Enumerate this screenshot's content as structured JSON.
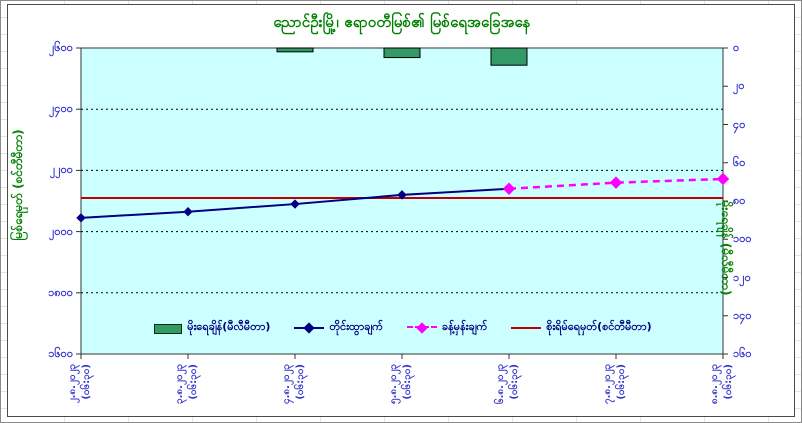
{
  "title": "ညောင်ဦးမြို့၊ ဧရာဝတီမြစ်၏ မြစ်ရေအခြေအနေ",
  "title_color": "#008000",
  "chart_data": {
    "type": "combo (bar + line + dashed forecast line + constant danger line)",
    "categories": [
      "၂.၈.၂၀၂၃",
      "၃.၈.၂၀၂၃",
      "၄.၈.၂၀၂၃",
      "၅.၈.၂၀၂၃",
      "၆.၈.၂၀၂၃",
      "၇.၈.၂၀၂၃",
      "၈.၈.၂၀၂၃"
    ],
    "category_time_suffix": "(၀၆:၃၀)",
    "plot_background": "#ccffff",
    "grid": "horizontal dashed black lines at each 200 cm step",
    "left_axis": {
      "title": "မြစ်ရေမှတ် (စင်တီမီတာ)",
      "title_color": "#008000",
      "min": 1600,
      "max": 2600,
      "step": 200,
      "tick_labels": [
        "၂၆၀၀",
        "၂၄၀၀",
        "၂၂၀၀",
        "၂၀၀၀",
        "၁၈၀၀",
        "၁၆၀၀"
      ],
      "tick_values": [
        2600,
        2400,
        2200,
        2000,
        1800,
        1600
      ],
      "label_color": "#3333cc"
    },
    "right_axis": {
      "title": "မိုးရေချိန် (မီလီမီတာ)",
      "title_color": "#008000",
      "min": 0,
      "max": 160,
      "step": 20,
      "direction": "inverted (0 at top, 160 at bottom)",
      "tick_labels": [
        "၀",
        "၂၀",
        "၄၀",
        "၆၀",
        "၈၀",
        "၁၀၀",
        "၁၂၀",
        "၁၄၀",
        "၁၆၀"
      ],
      "tick_values": [
        0,
        20,
        40,
        60,
        80,
        100,
        120,
        140,
        160
      ],
      "label_color": "#3333cc"
    },
    "series": [
      {
        "name": "မိုးရေချိန်(မီလီမီတာ)",
        "type": "bar",
        "axis": "right",
        "color": "#339966",
        "border_color": "#000000",
        "values": [
          0,
          0,
          2,
          5,
          9,
          0,
          0
        ]
      },
      {
        "name": "တိုင်းထွာချက်",
        "type": "line",
        "axis": "left",
        "color": "#000080",
        "marker": "diamond",
        "values": [
          2045,
          2065,
          2090,
          2120,
          2140,
          null,
          null
        ]
      },
      {
        "name": "ခန့်မှန်းချက်",
        "type": "dashed-line",
        "axis": "left",
        "color": "#ff00ff",
        "marker": "diamond",
        "values": [
          null,
          null,
          null,
          null,
          2140,
          2160,
          2172
        ]
      },
      {
        "name": "စိုးရိမ်ရေမှတ်(စင်တီမီတာ)",
        "type": "constant-line",
        "axis": "left",
        "color": "#c00000",
        "value": 2110
      }
    ],
    "legend_position": "bottom-center inside plot area",
    "legend_text_color": "#000080"
  }
}
